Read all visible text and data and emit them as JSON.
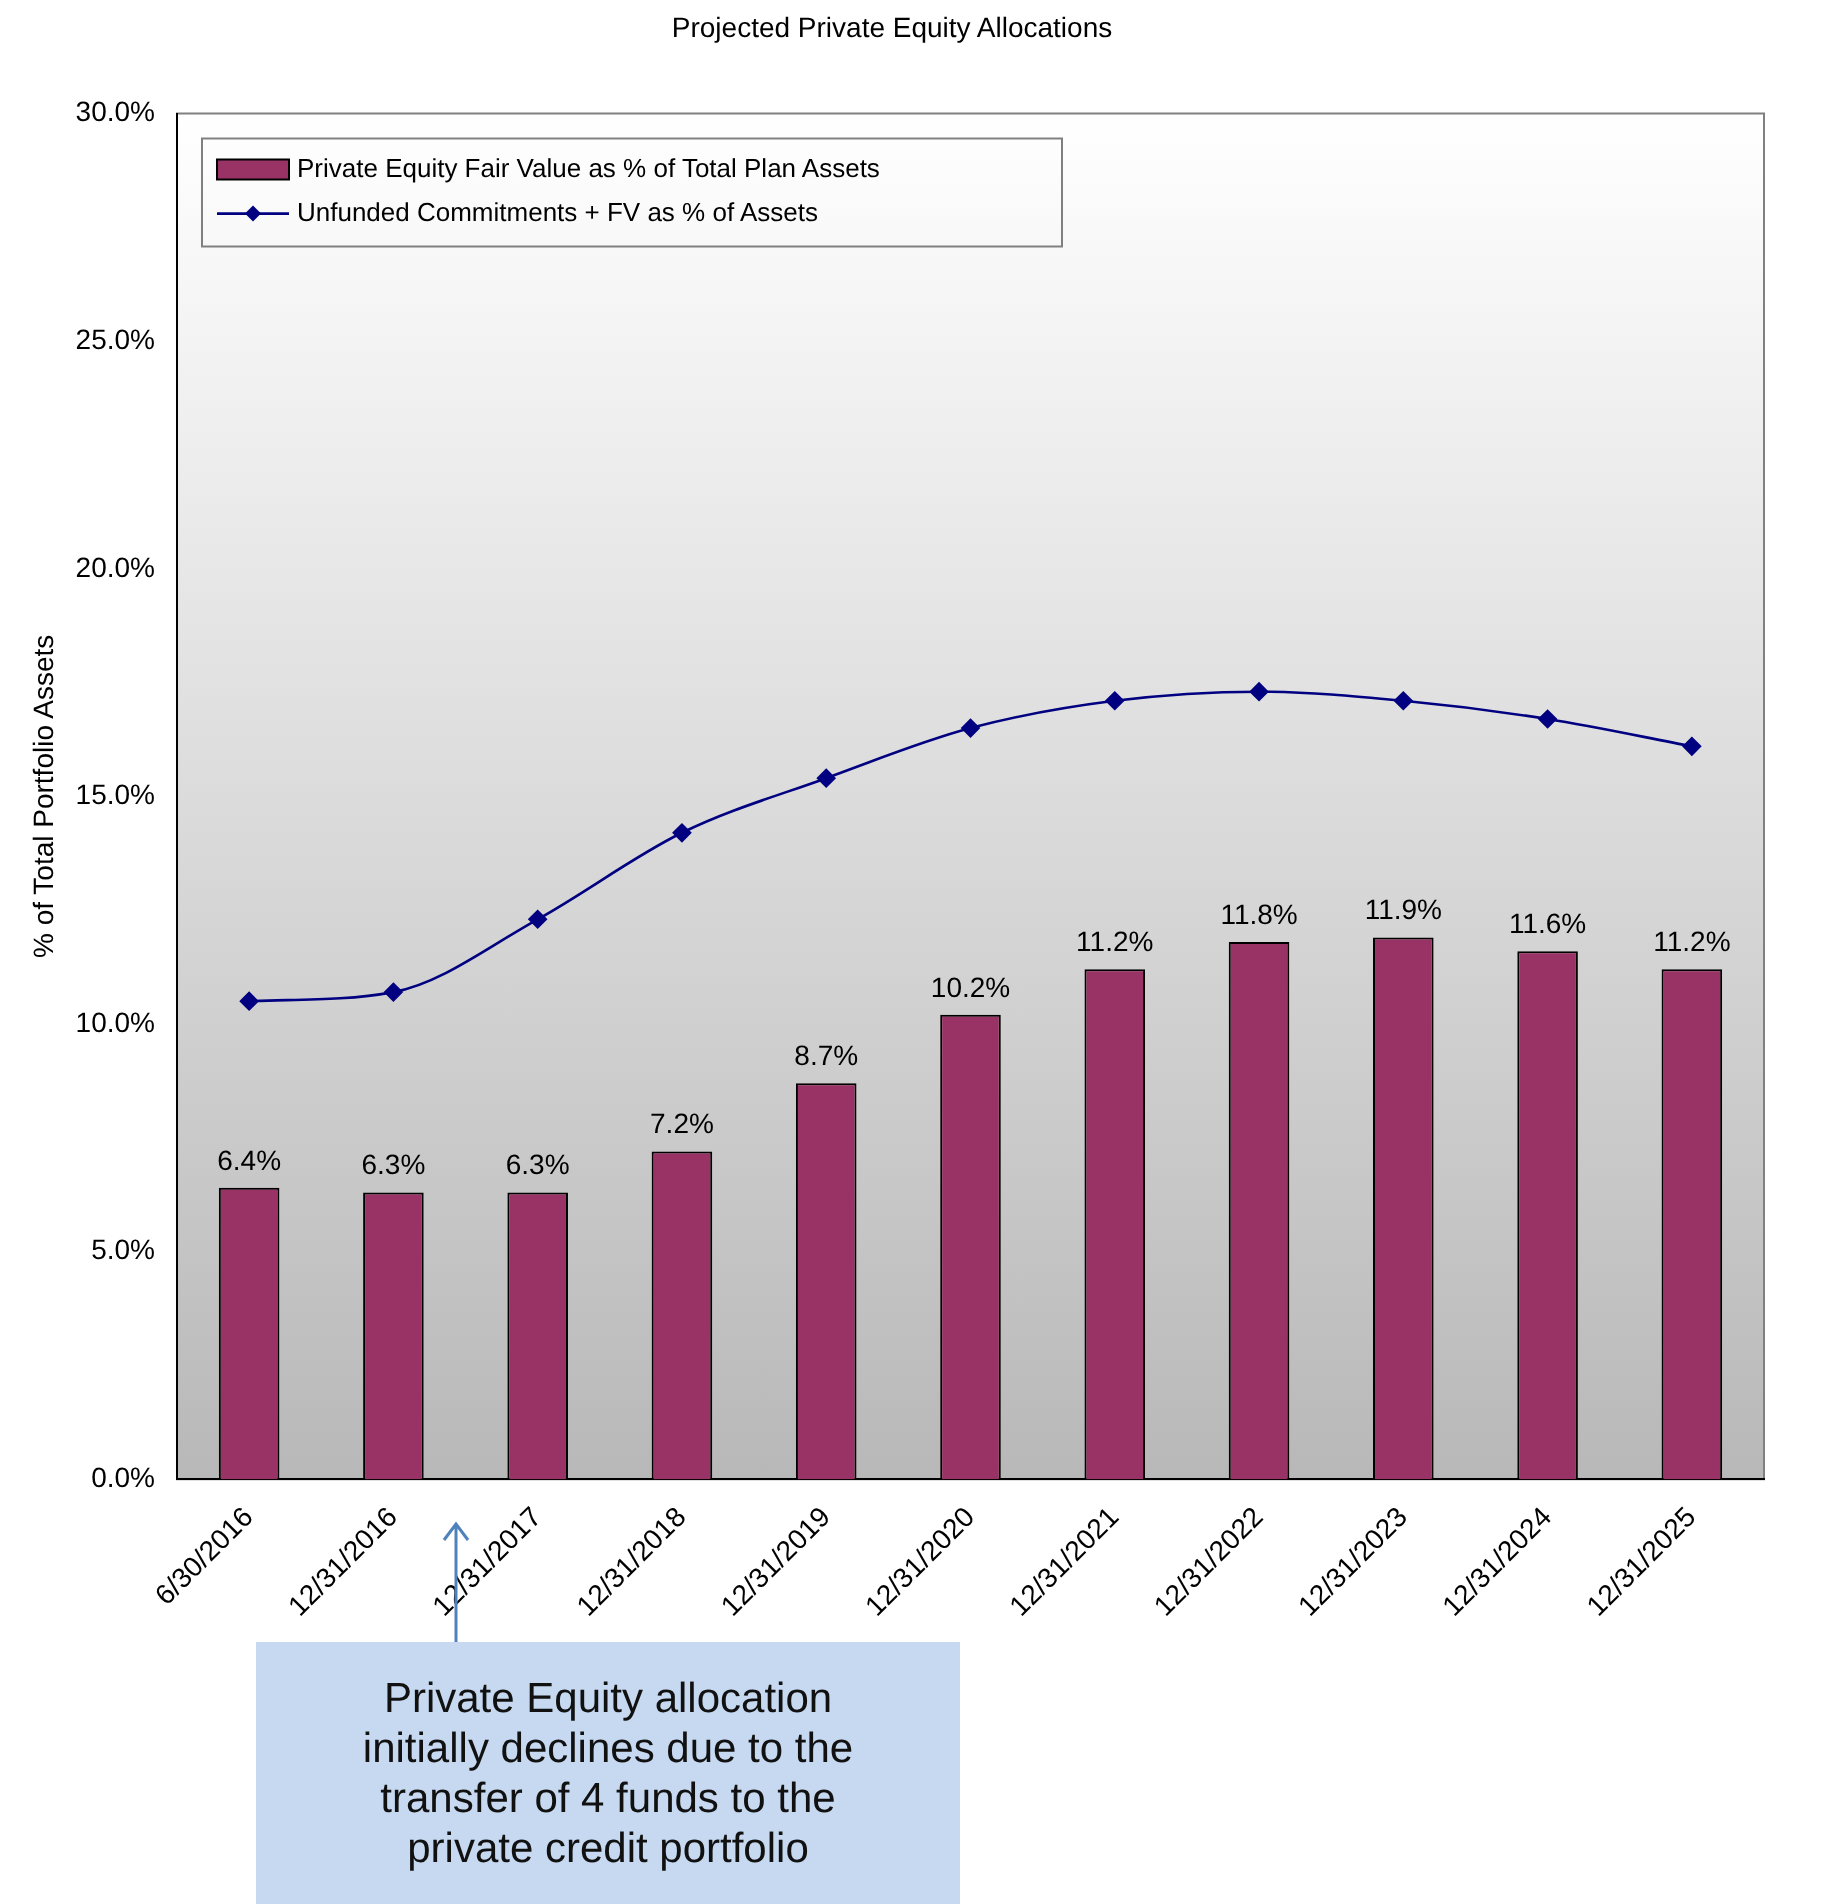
{
  "chart_data": {
    "type": "bar",
    "title": "Projected Private Equity Allocations",
    "ylabel": "% of Total Portfolio Assets",
    "categories": [
      "6/30/2016",
      "12/31/2016",
      "12/31/2017",
      "12/31/2018",
      "12/31/2019",
      "12/31/2020",
      "12/31/2021",
      "12/31/2022",
      "12/31/2023",
      "12/31/2024",
      "12/31/2025"
    ],
    "series": [
      {
        "name": "Private Equity Fair Value as % of Total Plan Assets",
        "color": "#993366",
        "values": [
          6.4,
          6.3,
          6.3,
          7.2,
          8.7,
          10.2,
          11.2,
          11.8,
          11.9,
          11.6,
          11.2
        ],
        "value_labels": [
          "6.4%",
          "6.3%",
          "6.3%",
          "7.2%",
          "8.7%",
          "10.2%",
          "11.2%",
          "11.8%",
          "11.9%",
          "11.6%",
          "11.2%"
        ]
      },
      {
        "name": "Unfunded Commitments + FV as % of Assets",
        "type": "line",
        "color": "#000080",
        "marker": "diamond",
        "values": [
          10.5,
          10.7,
          12.3,
          14.2,
          15.4,
          16.5,
          17.1,
          17.3,
          17.1,
          16.7,
          16.1
        ]
      }
    ],
    "ylim": [
      0,
      30
    ],
    "yticks": [
      {
        "value": 0,
        "label": "0.0%"
      },
      {
        "value": 5,
        "label": "5.0%"
      },
      {
        "value": 10,
        "label": "10.0%"
      },
      {
        "value": 15,
        "label": "15.0%"
      },
      {
        "value": 20,
        "label": "20.0%"
      },
      {
        "value": 25,
        "label": "25.0%"
      },
      {
        "value": 30,
        "label": "30.0%"
      }
    ],
    "grid": false,
    "legend": "top left",
    "annotations": [
      "Private Equity allocation initially declines  due to the transfer of 4 funds to the private credit portfolio"
    ]
  }
}
